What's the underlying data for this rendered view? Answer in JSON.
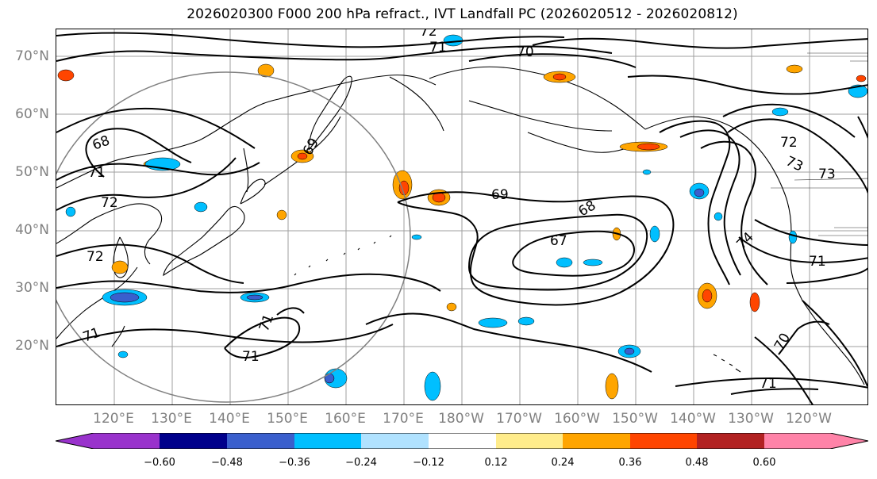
{
  "title": "2026020300 F000 200 hPa refract., IVT Landfall PC (2026020512 - 2026020812)",
  "lat_labels": [
    "70°N",
    "60°N",
    "50°N",
    "40°N",
    "30°N",
    "20°N"
  ],
  "lon_labels": [
    "120°E",
    "130°E",
    "140°E",
    "150°E",
    "160°E",
    "170°E",
    "180°W",
    "170°W",
    "160°W",
    "150°W",
    "140°W",
    "130°W",
    "120°W"
  ],
  "contour_labels": [
    "72",
    "71",
    "70",
    "68",
    "71",
    "72",
    "72",
    "69",
    "69",
    "68",
    "67",
    "72",
    "73",
    "73",
    "74",
    "71",
    "70",
    "71",
    "71",
    "71",
    "71"
  ],
  "colorbar": {
    "colors": [
      "#9932cc",
      "#00008b",
      "#3a5fcd",
      "#00bfff",
      "#b0e2ff",
      "#ffffff",
      "#ffec8b",
      "#ffa500",
      "#ff4500",
      "#b22222",
      "#ff83a8"
    ],
    "tick_labels": [
      "−0.60",
      "−0.48",
      "−0.36",
      "−0.24",
      "−0.12",
      "0.12",
      "0.24",
      "0.36",
      "0.48",
      "0.60"
    ]
  },
  "colors": {
    "grid": "#808080",
    "contour": "#000000",
    "circle": "#808080",
    "axis_label": "#808080"
  }
}
